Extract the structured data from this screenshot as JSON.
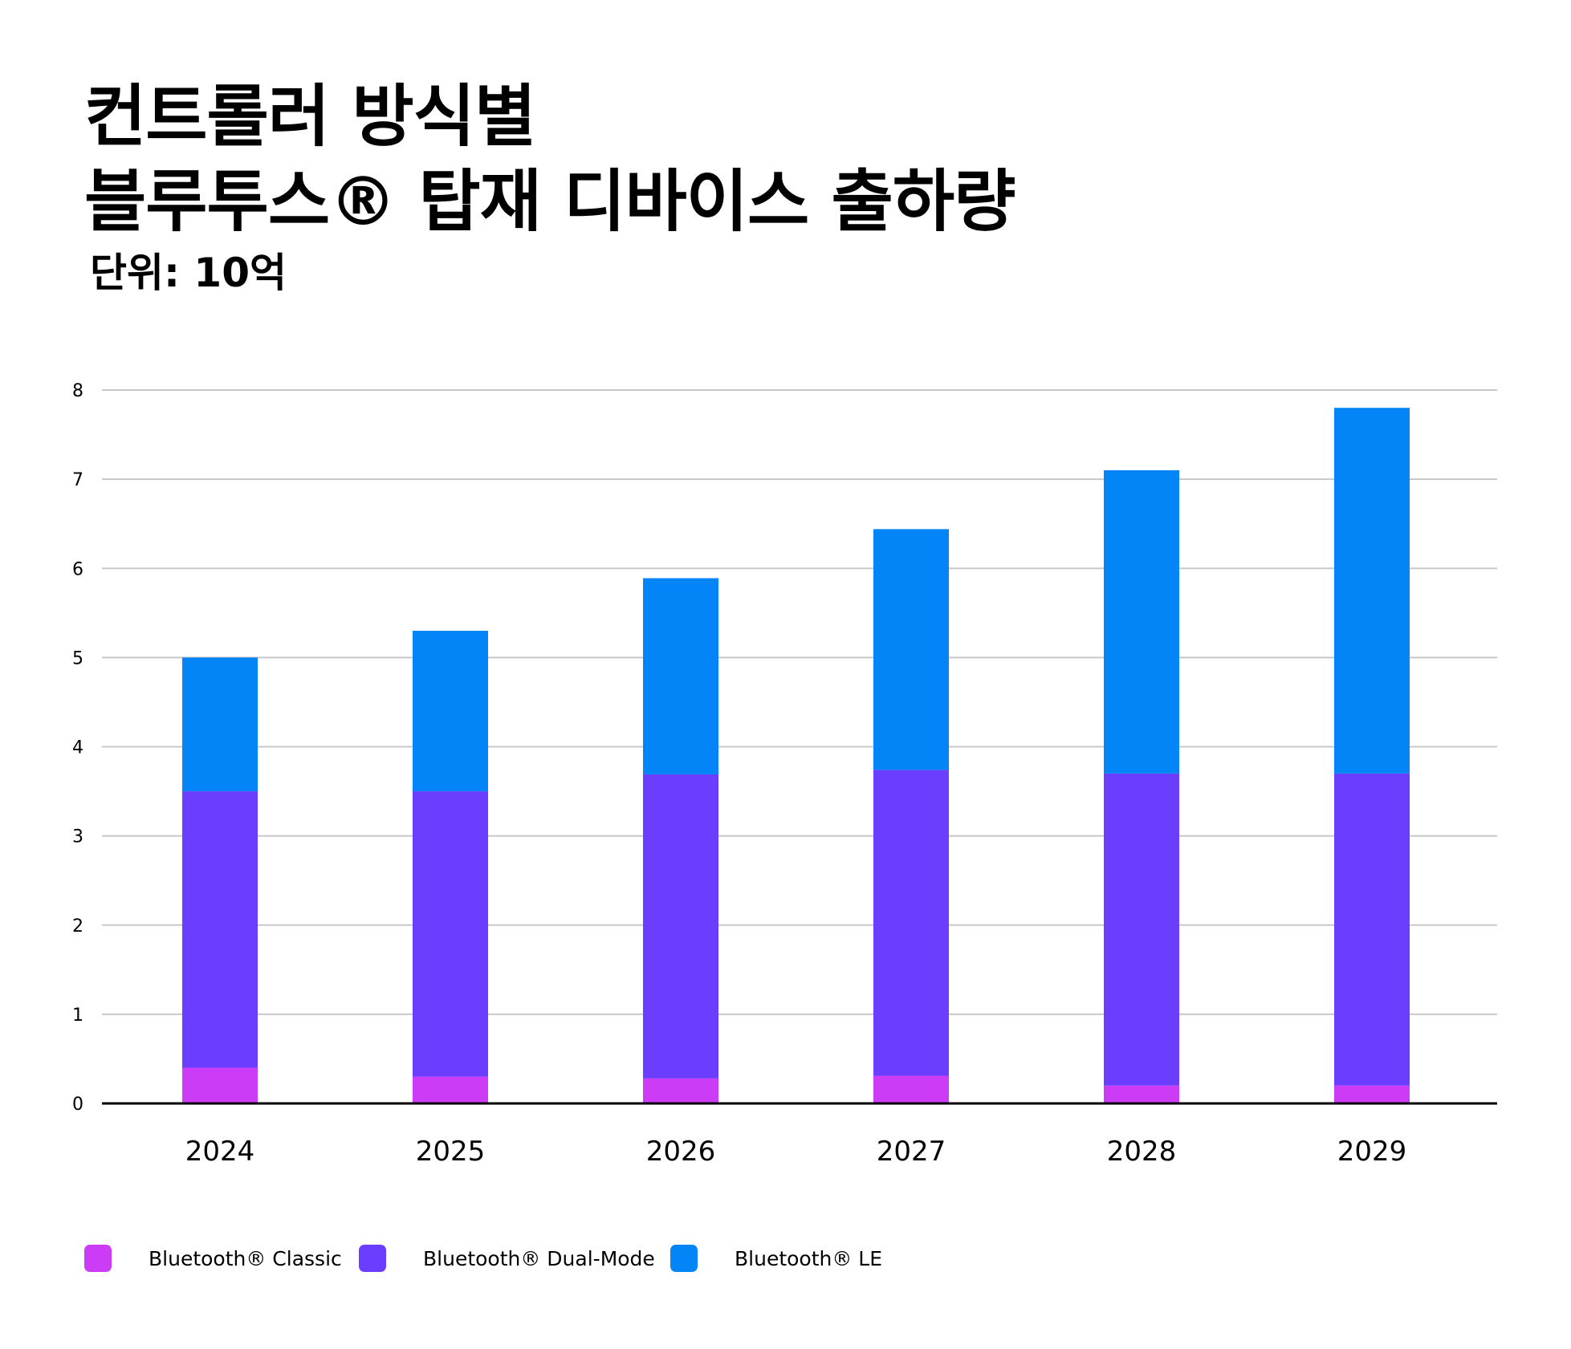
{
  "title_line1": "컨트롤러 방식별",
  "title_line2": "블루투스® 탑재 디바이스 출하량",
  "subtitle": "단위: 10억",
  "colors": {
    "grid": "#c8c8c8",
    "axis": "#000000",
    "text": "#000000"
  },
  "chart_data": {
    "type": "bar",
    "stacked": true,
    "categories": [
      "2024",
      "2025",
      "2026",
      "2027",
      "2028",
      "2029"
    ],
    "series": [
      {
        "name": "Bluetooth® Classic",
        "color": "#cc3cf7",
        "values": [
          0.4,
          0.3,
          0.28,
          0.31,
          0.2,
          0.2
        ]
      },
      {
        "name": "Bluetooth® Dual-Mode",
        "color": "#6a3dff",
        "values": [
          3.1,
          3.2,
          3.41,
          3.43,
          3.5,
          3.5
        ]
      },
      {
        "name": "Bluetooth® LE",
        "color": "#0385f7",
        "values": [
          1.5,
          1.8,
          2.2,
          2.7,
          3.4,
          4.1
        ]
      }
    ],
    "yticks": [
      "0",
      "1",
      "2",
      "3",
      "4",
      "5",
      "6",
      "7",
      "8"
    ],
    "ylim": [
      0,
      8
    ],
    "grid": true,
    "legend_position": "bottom-left"
  }
}
